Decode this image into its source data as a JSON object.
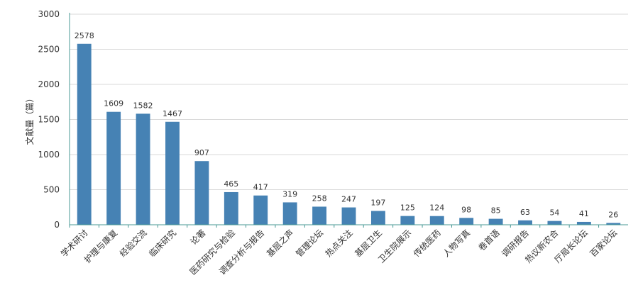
{
  "chart_data": {
    "type": "bar",
    "ylabel": "文献量（篇）",
    "ylim": [
      0,
      3000
    ],
    "yticks": [
      0,
      500,
      1000,
      1500,
      2000,
      2500,
      3000
    ],
    "grid": true,
    "legend": "none",
    "bar_color": "#4682b4",
    "categories": [
      "学术研讨",
      "护理与康复",
      "经验交流",
      "临床研究",
      "论著",
      "医药研究与检验",
      "调查分析与报告",
      "基层之声",
      "管理论坛",
      "热点关注",
      "基层卫生",
      "卫生院展示",
      "传统医药",
      "人物写真",
      "卷首语",
      "调研报告",
      "热议新农合",
      "厅局长论坛",
      "百家论坛"
    ],
    "values": [
      2578,
      1609,
      1582,
      1467,
      907,
      465,
      417,
      319,
      258,
      247,
      197,
      125,
      124,
      98,
      85,
      63,
      54,
      41,
      26
    ]
  }
}
